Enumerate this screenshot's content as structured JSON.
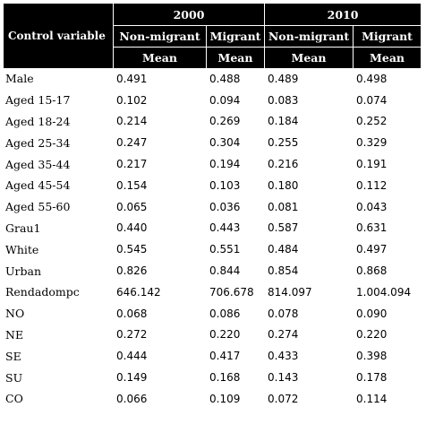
{
  "table": {
    "corner_label": "Control variable",
    "years": [
      "2000",
      "2010"
    ],
    "groups": [
      "Non-migrant",
      "Migrant",
      "Non-migrant",
      "Migrant"
    ],
    "stat_labels": [
      "Mean",
      "Mean",
      "Mean",
      "Mean"
    ],
    "rows": [
      {
        "label": "Male",
        "values": [
          "0.491",
          "0.488",
          "0.489",
          "0.498"
        ]
      },
      {
        "label": "Aged 15-17",
        "values": [
          "0.102",
          "0.094",
          "0.083",
          "0.074"
        ]
      },
      {
        "label": "Aged 18-24",
        "values": [
          "0.214",
          "0.269",
          "0.184",
          "0.252"
        ]
      },
      {
        "label": "Aged 25-34",
        "values": [
          "0.247",
          "0.304",
          "0.255",
          "0.329"
        ]
      },
      {
        "label": "Aged 35-44",
        "values": [
          "0.217",
          "0.194",
          "0.216",
          "0.191"
        ]
      },
      {
        "label": "Aged 45-54",
        "values": [
          "0.154",
          "0.103",
          "0.180",
          "0.112"
        ]
      },
      {
        "label": "Aged 55-60",
        "values": [
          "0.065",
          "0.036",
          "0.081",
          "0.043"
        ]
      },
      {
        "label": "Grau1",
        "values": [
          "0.440",
          "0.443",
          "0.587",
          "0.631"
        ]
      },
      {
        "label": "White",
        "values": [
          "0.545",
          "0.551",
          "0.484",
          "0.497"
        ]
      },
      {
        "label": "Urban",
        "values": [
          "0.826",
          "0.844",
          "0.854",
          "0.868"
        ]
      },
      {
        "label": "Rendadompc",
        "values": [
          "646.142",
          "706.678",
          "814.097",
          "1.004.094"
        ]
      },
      {
        "label": "NO",
        "values": [
          "0.068",
          "0.086",
          "0.078",
          "0.090"
        ]
      },
      {
        "label": "NE",
        "values": [
          "0.272",
          "0.220",
          "0.274",
          "0.220"
        ]
      },
      {
        "label": "SE",
        "values": [
          "0.444",
          "0.417",
          "0.433",
          "0.398"
        ]
      },
      {
        "label": "SU",
        "values": [
          "0.149",
          "0.168",
          "0.143",
          "0.178"
        ]
      },
      {
        "label": "CO",
        "values": [
          "0.066",
          "0.109",
          "0.072",
          "0.114"
        ]
      }
    ]
  }
}
